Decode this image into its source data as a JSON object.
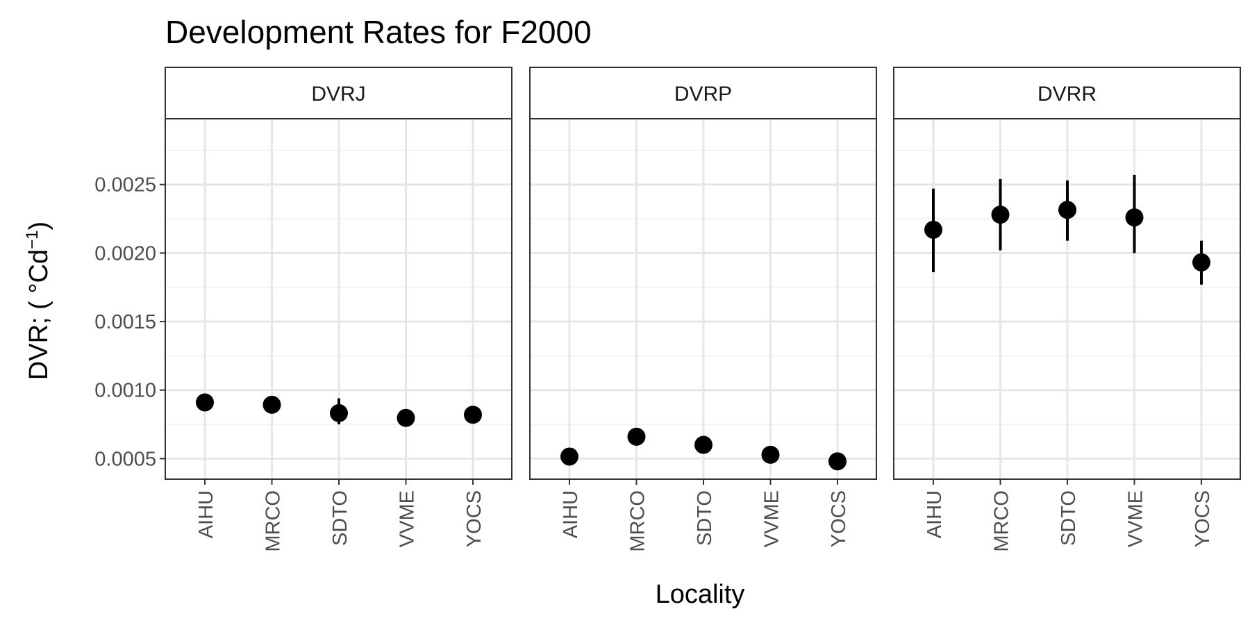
{
  "chart_data": {
    "type": "scatter",
    "title": "Development Rates for F2000",
    "xlabel": "Locality",
    "ylabel": {
      "prefix": "DVR; ( °Cd",
      "superscript": "−1",
      "suffix": ")"
    },
    "categories": [
      "AIHU",
      "MRCO",
      "SDTO",
      "VVME",
      "YOCS"
    ],
    "ylim": [
      0.00035,
      0.00298
    ],
    "y_ticks": [
      0.0005,
      0.001,
      0.0015,
      0.002,
      0.0025
    ],
    "y_tick_labels": [
      "0.0005",
      "0.0010",
      "0.0015",
      "0.0020",
      "0.0025"
    ],
    "grid": true,
    "facets": [
      {
        "label": "DVRJ",
        "points": [
          {
            "category": "AIHU",
            "y": 0.00091,
            "ymin": 0.00091,
            "ymax": 0.00091
          },
          {
            "category": "MRCO",
            "y": 0.000893,
            "ymin": 0.00087,
            "ymax": 0.00095
          },
          {
            "category": "SDTO",
            "y": 0.000832,
            "ymin": 0.00075,
            "ymax": 0.00094
          },
          {
            "category": "VVME",
            "y": 0.000797,
            "ymin": 0.000797,
            "ymax": 0.000797
          },
          {
            "category": "YOCS",
            "y": 0.00082,
            "ymin": 0.00082,
            "ymax": 0.00082
          }
        ]
      },
      {
        "label": "DVRP",
        "points": [
          {
            "category": "AIHU",
            "y": 0.000515,
            "ymin": 0.000515,
            "ymax": 0.000515
          },
          {
            "category": "MRCO",
            "y": 0.00066,
            "ymin": 0.00061,
            "ymax": 0.0007
          },
          {
            "category": "SDTO",
            "y": 0.0006,
            "ymin": 0.0006,
            "ymax": 0.0006
          },
          {
            "category": "VVME",
            "y": 0.000528,
            "ymin": 0.000528,
            "ymax": 0.000528
          },
          {
            "category": "YOCS",
            "y": 0.00048,
            "ymin": 0.00048,
            "ymax": 0.00048
          }
        ]
      },
      {
        "label": "DVRR",
        "points": [
          {
            "category": "AIHU",
            "y": 0.00217,
            "ymin": 0.00186,
            "ymax": 0.00247
          },
          {
            "category": "MRCO",
            "y": 0.00228,
            "ymin": 0.00202,
            "ymax": 0.00254
          },
          {
            "category": "SDTO",
            "y": 0.002315,
            "ymin": 0.00209,
            "ymax": 0.00253
          },
          {
            "category": "VVME",
            "y": 0.00226,
            "ymin": 0.002,
            "ymax": 0.00257
          },
          {
            "category": "YOCS",
            "y": 0.001932,
            "ymin": 0.00177,
            "ymax": 0.00209
          }
        ]
      }
    ]
  }
}
